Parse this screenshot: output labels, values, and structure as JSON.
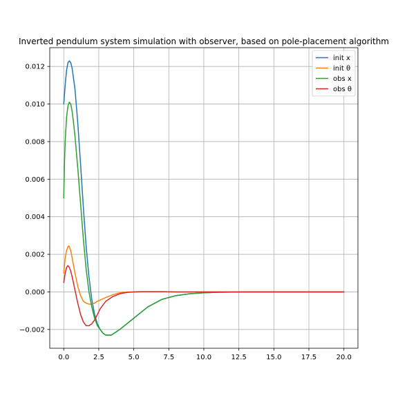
{
  "chart_data": {
    "type": "line",
    "title": "Inverted pendulum system simulation with observer, based on pole-placement algorithm",
    "xlabel": "",
    "ylabel": "",
    "xlim": [
      -1.0,
      21.0
    ],
    "ylim": [
      -0.003,
      0.013
    ],
    "grid": true,
    "legend_position": "top-right",
    "x_ticks": [
      0.0,
      2.5,
      5.0,
      7.5,
      10.0,
      12.5,
      15.0,
      17.5,
      20.0
    ],
    "x_tick_labels": [
      "0.0",
      "2.5",
      "5.0",
      "7.5",
      "10.0",
      "12.5",
      "15.0",
      "17.5",
      "20.0"
    ],
    "y_ticks": [
      -0.002,
      0.0,
      0.002,
      0.004,
      0.006,
      0.008,
      0.01,
      0.012
    ],
    "y_tick_labels": [
      "−0.002",
      "0.000",
      "0.002",
      "0.004",
      "0.006",
      "0.008",
      "0.010",
      "0.012"
    ],
    "series": [
      {
        "name": "init x",
        "color": "#1f77b4",
        "x": [
          0.0,
          0.1,
          0.2,
          0.3,
          0.4,
          0.5,
          0.6,
          0.8,
          1.0,
          1.2,
          1.4,
          1.6,
          1.8,
          2.0,
          2.2,
          2.4,
          2.6,
          2.8,
          3.0,
          3.2,
          3.4,
          3.6,
          3.8,
          4.0,
          4.5,
          5.0,
          5.5,
          6.0,
          7.0,
          8.0,
          9.0,
          10.0,
          11.0,
          12.0,
          13.0,
          15.0,
          17.5,
          20.0
        ],
        "values": [
          0.01,
          0.011,
          0.0118,
          0.0122,
          0.0123,
          0.0122,
          0.0119,
          0.0108,
          0.009,
          0.0068,
          0.0045,
          0.0024,
          0.0008,
          -0.0004,
          -0.0012,
          -0.0017,
          -0.002,
          -0.0022,
          -0.0023,
          -0.0023,
          -0.0023,
          -0.0022,
          -0.0021,
          -0.002,
          -0.0017,
          -0.0014,
          -0.0011,
          -0.0008,
          -0.0004,
          -0.0002,
          -0.0001,
          -5e-05,
          -2e-05,
          -1e-05,
          0.0,
          0.0,
          0.0,
          0.0
        ]
      },
      {
        "name": "init θ",
        "color": "#ff7f0e",
        "x": [
          0.0,
          0.1,
          0.2,
          0.3,
          0.35,
          0.4,
          0.5,
          0.6,
          0.8,
          1.0,
          1.2,
          1.4,
          1.6,
          1.8,
          2.0,
          2.2,
          2.4,
          2.7,
          3.0,
          3.5,
          4.0,
          4.5,
          5.0,
          6.0,
          7.0,
          8.0,
          10.0,
          15.0,
          20.0
        ],
        "values": [
          0.001,
          0.0018,
          0.0022,
          0.0024,
          0.00245,
          0.0024,
          0.0022,
          0.0018,
          0.001,
          0.0003,
          -0.0002,
          -0.0005,
          -0.0006,
          -0.00065,
          -0.00065,
          -0.0006,
          -0.0005,
          -0.0004,
          -0.0003,
          -0.00015,
          -5e-05,
          0.0,
          0.0,
          1e-05,
          1e-05,
          0.0,
          0.0,
          0.0,
          0.0
        ]
      },
      {
        "name": "obs x",
        "color": "#2ca02c",
        "x": [
          0.0,
          0.05,
          0.1,
          0.2,
          0.3,
          0.4,
          0.5,
          0.6,
          0.7,
          0.8,
          1.0,
          1.2,
          1.4,
          1.6,
          1.8,
          2.0,
          2.2,
          2.4,
          2.6,
          2.8,
          3.0,
          3.2,
          3.4,
          3.6,
          3.8,
          4.0,
          4.5,
          5.0,
          5.5,
          6.0,
          7.0,
          8.0,
          9.0,
          10.0,
          11.0,
          12.0,
          13.0,
          15.0,
          17.5,
          20.0
        ],
        "values": [
          0.005,
          0.0068,
          0.008,
          0.0093,
          0.0099,
          0.0101,
          0.01,
          0.0096,
          0.009,
          0.0083,
          0.0066,
          0.0047,
          0.0028,
          0.0012,
          0.0,
          -0.0008,
          -0.0014,
          -0.0018,
          -0.002,
          -0.0022,
          -0.0023,
          -0.0023,
          -0.0023,
          -0.0022,
          -0.0021,
          -0.002,
          -0.0017,
          -0.0014,
          -0.0011,
          -0.0008,
          -0.0004,
          -0.0002,
          -0.0001,
          -5e-05,
          -2e-05,
          -1e-05,
          0.0,
          0.0,
          0.0,
          0.0
        ]
      },
      {
        "name": "obs θ",
        "color": "#d62728",
        "x": [
          0.0,
          0.1,
          0.2,
          0.3,
          0.4,
          0.5,
          0.6,
          0.8,
          1.0,
          1.2,
          1.4,
          1.6,
          1.8,
          2.0,
          2.2,
          2.4,
          2.6,
          2.8,
          3.0,
          3.2,
          3.5,
          4.0,
          4.5,
          5.0,
          5.5,
          6.0,
          7.0,
          8.0,
          10.0,
          15.0,
          20.0
        ],
        "values": [
          0.0005,
          0.001,
          0.0013,
          0.0014,
          0.0013,
          0.0011,
          0.0008,
          0.0001,
          -0.0006,
          -0.0012,
          -0.0016,
          -0.0018,
          -0.0018,
          -0.0017,
          -0.0015,
          -0.0012,
          -0.0009,
          -0.0007,
          -0.0005,
          -0.0004,
          -0.00025,
          -0.0001,
          -3e-05,
          0.0,
          1e-05,
          1e-05,
          1e-05,
          0.0,
          0.0,
          0.0,
          0.0
        ]
      }
    ]
  }
}
